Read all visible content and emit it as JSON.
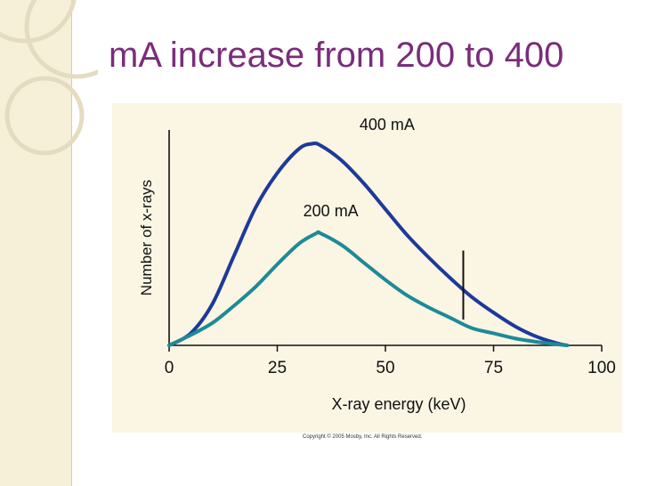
{
  "slide": {
    "title": "mA increase from 200 to 400",
    "copyright": "Copyright © 2005 Mosby, Inc. All Rights Reserved."
  },
  "colors": {
    "title": "#7a2d7a",
    "sidebar": "#f6f0d8",
    "panel": "#fbf5e4",
    "series_400": "#1d3a9a",
    "series_200": "#1e8a98"
  },
  "chart_data": {
    "type": "line",
    "title": "",
    "xlabel": "X-ray energy (keV)",
    "ylabel": "Number of x-rays",
    "xlim": [
      0,
      100
    ],
    "x_ticks": [
      "0",
      "25",
      "50",
      "75",
      "100"
    ],
    "grid": false,
    "legend": "inline labels",
    "series": [
      {
        "name": "400 mA",
        "color": "#1d3a9a",
        "x": [
          0,
          5,
          10,
          15,
          20,
          25,
          30,
          33,
          35,
          40,
          45,
          50,
          55,
          60,
          65,
          70,
          75,
          80,
          85,
          90,
          92
        ],
        "y": [
          0,
          7,
          24,
          52,
          80,
          100,
          114,
          117,
          116,
          107,
          94,
          79,
          64,
          51,
          39,
          28,
          19,
          11,
          5,
          1,
          0
        ]
      },
      {
        "name": "200 mA",
        "color": "#1e8a98",
        "x": [
          0,
          5,
          10,
          15,
          20,
          25,
          30,
          34,
          35,
          40,
          45,
          50,
          55,
          60,
          65,
          70,
          75,
          80,
          85,
          90,
          92
        ],
        "y": [
          0,
          6,
          13,
          23,
          34,
          47,
          59,
          65,
          65,
          58,
          48,
          38,
          29,
          22,
          16,
          10,
          7,
          4,
          2,
          0.5,
          0
        ]
      }
    ],
    "annotations": [
      {
        "text": "400 mA",
        "x": 44,
        "y": 125
      },
      {
        "text": "200 mA",
        "x": 31,
        "y": 75
      }
    ],
    "marker_line": {
      "x": 68,
      "y_range": [
        15,
        55
      ]
    }
  }
}
